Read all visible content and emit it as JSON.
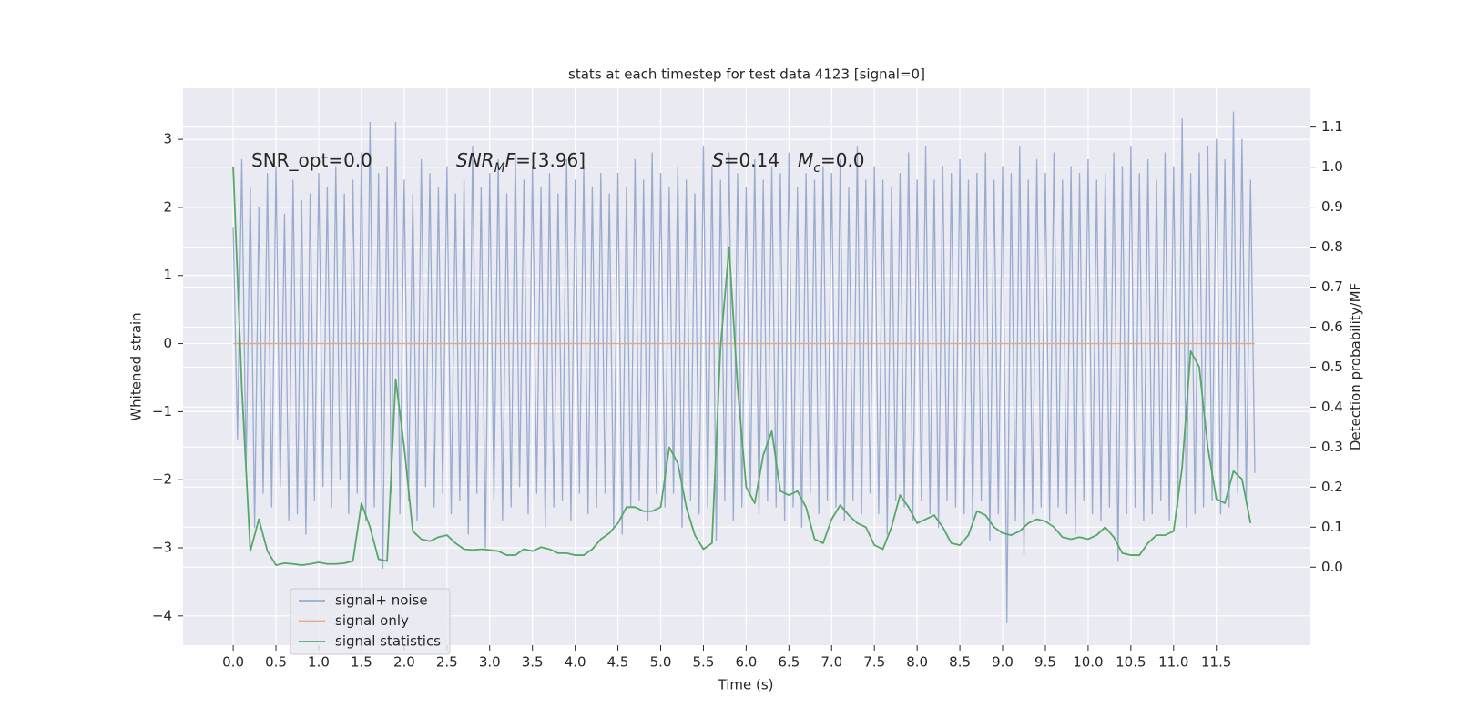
{
  "chart_data": {
    "type": "line",
    "title": "stats at each timestep for test data 4123 [signal=0]",
    "xlabel": "Time (s)",
    "ylabel": "Whitened strain",
    "y2label": "Detection probability/MF",
    "xlim": [
      -0.587,
      12.6
    ],
    "xticks": [
      {
        "value": 0,
        "label": "0.0"
      },
      0.5,
      {
        "value": 1,
        "label": "1.0"
      },
      1.5,
      {
        "value": 2,
        "label": "2.0"
      },
      2.5,
      {
        "value": 3,
        "label": "3.0"
      },
      3.5,
      {
        "value": 4,
        "label": "4.0"
      },
      4.5,
      {
        "value": 5,
        "label": "5.0"
      },
      5.5,
      {
        "value": 6,
        "label": "6.0"
      },
      6.5,
      {
        "value": 7,
        "label": "7.0"
      },
      7.5,
      {
        "value": 8,
        "label": "8.0"
      },
      8.5,
      {
        "value": 9,
        "label": "9.0"
      },
      9.5,
      {
        "value": 10,
        "label": "10.0"
      },
      10.5,
      {
        "value": 11,
        "label": "11.0"
      },
      11.5
    ],
    "ylim": [
      -4.43,
      3.75
    ],
    "yticks": [
      {
        "value": -4,
        "label": "−4"
      },
      {
        "value": -3,
        "label": "−3"
      },
      {
        "value": -2,
        "label": "−2"
      },
      {
        "value": -1,
        "label": "−1"
      },
      0,
      1,
      2,
      3
    ],
    "y2lim": [
      -0.195,
      1.197
    ],
    "y2ticks": [
      {
        "value": 0,
        "label": "0.0"
      },
      0.1,
      0.2,
      0.3,
      0.4,
      0.5,
      0.6,
      0.7,
      0.8,
      0.9,
      {
        "value": 1,
        "label": "1.0"
      },
      1.1
    ],
    "grid": true,
    "legend": "lower left",
    "annotations": [
      [
        {
          "t": "SNR_opt=0.0",
          "style": "normal"
        }
      ],
      [
        {
          "t": "SNR",
          "style": "italic"
        },
        {
          "t": "M",
          "style": "sub"
        },
        {
          "t": "F",
          "style": "italic"
        },
        {
          "t": "=[3.96]",
          "style": "normal"
        }
      ],
      [
        {
          "t": "S",
          "style": "italic"
        },
        {
          "t": "=0.14",
          "style": "normal"
        }
      ],
      [
        {
          "t": "M",
          "style": "italic"
        },
        {
          "t": "c",
          "style": "sub"
        },
        {
          "t": "=0.0",
          "style": "normal"
        }
      ]
    ],
    "series": [
      {
        "name": "signal+ noise",
        "color": "#9aabd0",
        "x": [
          0,
          0.05,
          0.1,
          0.15,
          0.2,
          0.25,
          0.3,
          0.35,
          0.4,
          0.45,
          0.5,
          0.55,
          0.6,
          0.65,
          0.7,
          0.75,
          0.8,
          0.85,
          0.9,
          0.95,
          1,
          1.05,
          1.1,
          1.15,
          1.2,
          1.25,
          1.3,
          1.35,
          1.4,
          1.45,
          1.5,
          1.55,
          1.6,
          1.65,
          1.7,
          1.75,
          1.8,
          1.85,
          1.9,
          1.95,
          2,
          2.05,
          2.1,
          2.15,
          2.2,
          2.25,
          2.3,
          2.35,
          2.4,
          2.45,
          2.5,
          2.55,
          2.6,
          2.65,
          2.7,
          2.75,
          2.8,
          2.85,
          2.9,
          2.95,
          3,
          3.05,
          3.1,
          3.15,
          3.2,
          3.25,
          3.3,
          3.35,
          3.4,
          3.45,
          3.5,
          3.55,
          3.6,
          3.65,
          3.7,
          3.75,
          3.8,
          3.85,
          3.9,
          3.95,
          4,
          4.05,
          4.1,
          4.15,
          4.2,
          4.25,
          4.3,
          4.35,
          4.4,
          4.45,
          4.5,
          4.55,
          4.6,
          4.65,
          4.7,
          4.75,
          4.8,
          4.85,
          4.9,
          4.95,
          5,
          5.05,
          5.1,
          5.15,
          5.2,
          5.25,
          5.3,
          5.35,
          5.4,
          5.45,
          5.5,
          5.55,
          5.6,
          5.65,
          5.7,
          5.75,
          5.8,
          5.85,
          5.9,
          5.95,
          6,
          6.05,
          6.1,
          6.15,
          6.2,
          6.25,
          6.3,
          6.35,
          6.4,
          6.45,
          6.5,
          6.55,
          6.6,
          6.65,
          6.7,
          6.75,
          6.8,
          6.85,
          6.9,
          6.95,
          7,
          7.05,
          7.1,
          7.15,
          7.2,
          7.25,
          7.3,
          7.35,
          7.4,
          7.45,
          7.5,
          7.55,
          7.6,
          7.65,
          7.7,
          7.75,
          7.8,
          7.85,
          7.9,
          7.95,
          8,
          8.05,
          8.1,
          8.15,
          8.2,
          8.25,
          8.3,
          8.35,
          8.4,
          8.45,
          8.5,
          8.55,
          8.6,
          8.65,
          8.7,
          8.75,
          8.8,
          8.85,
          8.9,
          8.95,
          9,
          9.05,
          9.1,
          9.15,
          9.2,
          9.25,
          9.3,
          9.35,
          9.4,
          9.45,
          9.5,
          9.55,
          9.6,
          9.65,
          9.7,
          9.75,
          9.8,
          9.85,
          9.9,
          9.95,
          10,
          10.05,
          10.1,
          10.15,
          10.2,
          10.25,
          10.3,
          10.35,
          10.4,
          10.45,
          10.5,
          10.55,
          10.6,
          10.65,
          10.7,
          10.75,
          10.8,
          10.85,
          10.9,
          10.95,
          11,
          11.05,
          11.1,
          11.15,
          11.2,
          11.25,
          11.3,
          11.35,
          11.4,
          11.45,
          11.5,
          11.55,
          11.6,
          11.65,
          11.7,
          11.75,
          11.8,
          11.85,
          11.9,
          11.95
        ],
        "values": [
          1.7,
          -1.4,
          2.7,
          -1.9,
          2.3,
          -2.7,
          2.0,
          -2.2,
          2.5,
          -2.4,
          2.6,
          -2.1,
          1.9,
          -2.6,
          2.4,
          -2.5,
          2.1,
          -2.8,
          2.2,
          -2.3,
          2.5,
          -2.1,
          2.3,
          -2.4,
          2.6,
          -2.0,
          2.2,
          -2.5,
          2.4,
          -2.2,
          2.8,
          -2.6,
          3.25,
          -2.4,
          2.5,
          -3.3,
          2.6,
          -2.2,
          3.25,
          -2.5,
          2.4,
          -2.3,
          2.2,
          -2.6,
          2.7,
          -2.1,
          2.5,
          -2.4,
          2.3,
          -2.2,
          2.6,
          -2.5,
          2.2,
          -2.3,
          2.4,
          -2.8,
          2.9,
          -2.2,
          2.3,
          -3.0,
          2.5,
          -2.3,
          2.7,
          -2.6,
          2.2,
          -2.4,
          2.8,
          -2.1,
          2.4,
          -2.5,
          2.6,
          -2.2,
          2.3,
          -2.7,
          2.5,
          -2.4,
          2.2,
          -2.3,
          2.7,
          -2.6,
          2.4,
          -2.2,
          2.6,
          -2.5,
          2.3,
          -2.4,
          2.5,
          -2.2,
          2.2,
          -2.7,
          2.5,
          -2.8,
          2.3,
          -2.4,
          2.7,
          -2.3,
          2.4,
          -2.6,
          2.8,
          -2.2,
          2.5,
          -2.4,
          2.3,
          -2.2,
          2.6,
          -2.7,
          2.4,
          -2.3,
          2.2,
          -2.5,
          2.9,
          -2.4,
          2.6,
          -2.9,
          2.4,
          -2.3,
          2.8,
          -2.6,
          2.5,
          -2.4,
          2.3,
          -2.2,
          2.7,
          -2.5,
          2.4,
          -2.3,
          2.6,
          -2.4,
          2.5,
          -2.6,
          2.8,
          -2.4,
          2.3,
          -2.7,
          2.5,
          -2.2,
          2.4,
          -2.5,
          2.6,
          -2.3,
          2.5,
          -2.4,
          2.7,
          -2.6,
          2.3,
          -2.3,
          2.9,
          -2.5,
          2.4,
          -2.2,
          2.6,
          -2.5,
          2.4,
          -2.8,
          2.3,
          -2.3,
          2.5,
          -2.4,
          2.8,
          -2.6,
          2.4,
          -2.3,
          2.9,
          -2.5,
          2.4,
          -2.7,
          2.6,
          -2.3,
          2.5,
          -2.4,
          2.7,
          -2.5,
          2.4,
          -2.6,
          2.5,
          -2.3,
          2.8,
          -2.9,
          2.4,
          -2.5,
          2.6,
          -4.1,
          2.5,
          -2.6,
          2.9,
          -3.1,
          2.4,
          -2.5,
          2.7,
          -2.4,
          2.5,
          -2.6,
          2.8,
          -2.4,
          2.4,
          -2.5,
          2.6,
          -2.8,
          2.5,
          -2.3,
          2.7,
          -2.5,
          2.4,
          -2.6,
          2.5,
          -2.4,
          2.8,
          -3.2,
          2.6,
          -2.5,
          2.9,
          -2.4,
          2.5,
          -2.6,
          2.7,
          -2.5,
          2.4,
          -2.3,
          2.8,
          -2.6,
          2.6,
          -2.4,
          3.3,
          -2.7,
          2.5,
          -2.5,
          2.8,
          -2.4,
          2.9,
          -2.3,
          3.0,
          -2.5,
          2.7,
          -2.4,
          3.4,
          -2.2,
          3.0,
          -2.3,
          2.4,
          -1.9
        ]
      },
      {
        "name": "signal only",
        "color": "#e6a987",
        "x": [
          0,
          11.95
        ],
        "values": [
          0,
          0
        ]
      },
      {
        "name": "signal statistics",
        "color": "#55a868",
        "axis": "y2",
        "x": [
          0,
          0.1,
          0.2,
          0.3,
          0.4,
          0.5,
          0.6,
          0.7,
          0.8,
          0.9,
          1,
          1.1,
          1.2,
          1.3,
          1.4,
          1.5,
          1.6,
          1.7,
          1.8,
          1.9,
          2,
          2.1,
          2.2,
          2.3,
          2.4,
          2.5,
          2.6,
          2.7,
          2.8,
          2.9,
          3,
          3.1,
          3.2,
          3.3,
          3.4,
          3.5,
          3.6,
          3.7,
          3.8,
          3.9,
          4,
          4.1,
          4.2,
          4.3,
          4.4,
          4.5,
          4.6,
          4.7,
          4.8,
          4.9,
          5,
          5.1,
          5.2,
          5.3,
          5.4,
          5.5,
          5.6,
          5.7,
          5.8,
          5.9,
          6,
          6.1,
          6.2,
          6.3,
          6.4,
          6.5,
          6.6,
          6.7,
          6.8,
          6.9,
          7,
          7.1,
          7.2,
          7.3,
          7.4,
          7.5,
          7.6,
          7.7,
          7.8,
          7.9,
          8,
          8.1,
          8.2,
          8.3,
          8.4,
          8.5,
          8.6,
          8.7,
          8.8,
          8.9,
          9,
          9.1,
          9.2,
          9.3,
          9.4,
          9.5,
          9.6,
          9.7,
          9.8,
          9.9,
          10,
          10.1,
          10.2,
          10.3,
          10.4,
          10.5,
          10.6,
          10.7,
          10.8,
          10.9,
          11,
          11.1,
          11.2,
          11.3,
          11.4,
          11.5,
          11.6,
          11.7,
          11.8,
          11.9
        ],
        "values": [
          1.0,
          0.45,
          0.04,
          0.12,
          0.04,
          0.005,
          0.01,
          0.008,
          0.005,
          0.008,
          0.012,
          0.008,
          0.008,
          0.01,
          0.015,
          0.16,
          0.1,
          0.02,
          0.015,
          0.47,
          0.3,
          0.09,
          0.07,
          0.065,
          0.075,
          0.08,
          0.06,
          0.045,
          0.043,
          0.045,
          0.043,
          0.04,
          0.03,
          0.03,
          0.045,
          0.04,
          0.05,
          0.045,
          0.035,
          0.035,
          0.03,
          0.03,
          0.045,
          0.07,
          0.085,
          0.11,
          0.15,
          0.15,
          0.14,
          0.14,
          0.15,
          0.3,
          0.26,
          0.15,
          0.08,
          0.045,
          0.06,
          0.55,
          0.8,
          0.45,
          0.2,
          0.16,
          0.28,
          0.34,
          0.19,
          0.18,
          0.19,
          0.15,
          0.07,
          0.06,
          0.12,
          0.155,
          0.13,
          0.11,
          0.1,
          0.055,
          0.045,
          0.1,
          0.18,
          0.15,
          0.11,
          0.12,
          0.13,
          0.1,
          0.06,
          0.055,
          0.08,
          0.14,
          0.13,
          0.1,
          0.085,
          0.08,
          0.09,
          0.11,
          0.12,
          0.115,
          0.1,
          0.075,
          0.07,
          0.075,
          0.07,
          0.08,
          0.1,
          0.075,
          0.035,
          0.03,
          0.03,
          0.06,
          0.08,
          0.08,
          0.09,
          0.25,
          0.54,
          0.5,
          0.3,
          0.17,
          0.16,
          0.24,
          0.22,
          0.11
        ]
      }
    ]
  }
}
